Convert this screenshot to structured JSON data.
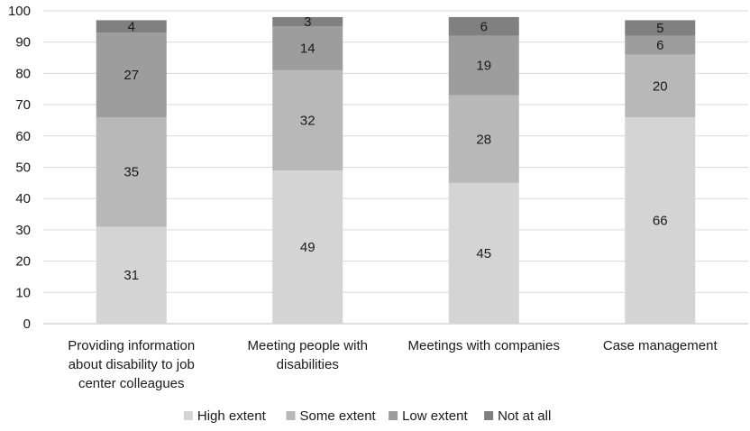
{
  "chart_data": {
    "type": "bar",
    "stacked": true,
    "title": "",
    "xlabel": "",
    "ylabel": "",
    "ylim": [
      0,
      100
    ],
    "yticks": [
      0,
      10,
      20,
      30,
      40,
      50,
      60,
      70,
      80,
      90,
      100
    ],
    "grid": true,
    "legend_position": "bottom",
    "categories": [
      [
        "Providing information",
        "about disability to job",
        "center colleagues"
      ],
      [
        "Meeting people with",
        "disabilities"
      ],
      [
        "Meetings with companies"
      ],
      [
        "Case management"
      ]
    ],
    "series": [
      {
        "name": "High extent",
        "color": "#d4d4d4",
        "values": [
          31,
          49,
          45,
          66
        ]
      },
      {
        "name": "Some extent",
        "color": "#b8b8b8",
        "values": [
          35,
          32,
          28,
          20
        ]
      },
      {
        "name": "Low extent",
        "color": "#9d9d9d",
        "values": [
          27,
          14,
          19,
          6
        ]
      },
      {
        "name": "Not at all",
        "color": "#808080",
        "values": [
          4,
          3,
          6,
          5
        ]
      }
    ]
  }
}
